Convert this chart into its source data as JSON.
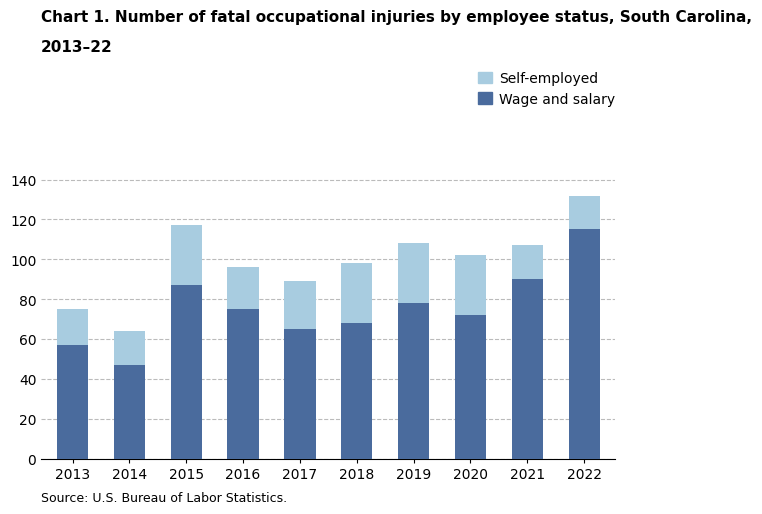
{
  "title_line1": "Chart 1. Number of fatal occupational injuries by employee status, South Carolina,",
  "title_line2": "2013–22",
  "years": [
    2013,
    2014,
    2015,
    2016,
    2017,
    2018,
    2019,
    2020,
    2021,
    2022
  ],
  "wage_and_salary": [
    57,
    47,
    87,
    75,
    65,
    68,
    78,
    72,
    90,
    115
  ],
  "self_employed": [
    18,
    17,
    30,
    21,
    24,
    30,
    30,
    30,
    17,
    17
  ],
  "color_wage": "#4a6b9d",
  "color_self": "#a8cce0",
  "ylabel_ticks": [
    0,
    20,
    40,
    60,
    80,
    100,
    120,
    140
  ],
  "ylim": [
    0,
    147
  ],
  "legend_self": "Self-employed",
  "legend_wage": "Wage and salary",
  "source_text": "Source: U.S. Bureau of Labor Statistics.",
  "title_fontsize": 11,
  "tick_fontsize": 10,
  "legend_fontsize": 10,
  "source_fontsize": 9,
  "bar_width": 0.55,
  "background_color": "#ffffff",
  "grid_color": "#bbbbbb"
}
